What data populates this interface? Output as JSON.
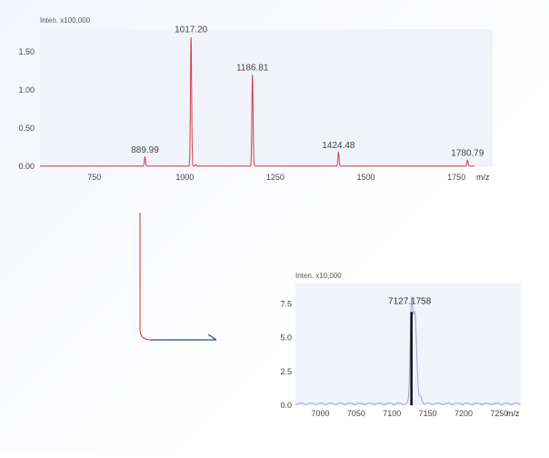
{
  "chart_data": [
    {
      "type": "line",
      "ylabel": "Inten. x100,000",
      "xlabel": "m/z",
      "xlim": [
        600,
        1800
      ],
      "ylim": [
        0,
        1.8
      ],
      "x_ticks": [
        750,
        1000,
        1250,
        1500,
        1750
      ],
      "y_ticks": [
        0.0,
        0.5,
        1.0,
        1.5
      ],
      "x_tick_labels": [
        "750",
        "1000",
        "1250",
        "1500",
        "1750"
      ],
      "y_tick_labels": [
        "0.00",
        "0.50",
        "1.00",
        "1.50"
      ],
      "color": "#d43c4c",
      "peaks": [
        {
          "x": 889.99,
          "y": 0.12,
          "label": "889.99"
        },
        {
          "x": 1017.2,
          "y": 1.7,
          "label": "1017.20"
        },
        {
          "x": 1186.81,
          "y": 1.2,
          "label": "1186.81"
        },
        {
          "x": 1424.48,
          "y": 0.18,
          "label": "1424.48"
        },
        {
          "x": 1780.79,
          "y": 0.08,
          "label": "1780.79"
        }
      ],
      "minor_peaks": [
        {
          "x": 1030,
          "y": 0.02
        },
        {
          "x": 1190,
          "y": 0.03
        }
      ]
    },
    {
      "type": "line",
      "ylabel": "Inten. x10,000",
      "xlabel": "m/z",
      "xlim": [
        6965,
        7280
      ],
      "ylim": [
        0,
        9.0
      ],
      "x_ticks": [
        7000,
        7050,
        7100,
        7150,
        7200,
        7250
      ],
      "y_ticks": [
        0.0,
        2.5,
        5.0,
        7.5
      ],
      "x_tick_labels": [
        "7000",
        "7050",
        "7100",
        "7150",
        "7200",
        "7250"
      ],
      "y_tick_labels": [
        "0.0",
        "2.5",
        "5.0",
        "7.5"
      ],
      "color": "#9fa8c8",
      "stick_color": "#111111",
      "peaks": [
        {
          "x": 7127.1758,
          "y": 6.9,
          "label": "7127.1758"
        }
      ],
      "secondary_peak": {
        "x": 7132,
        "y": 6.6
      }
    }
  ],
  "connector": {
    "vertical_color": "#c8593a",
    "horizontal_color": "#2e4a85"
  }
}
